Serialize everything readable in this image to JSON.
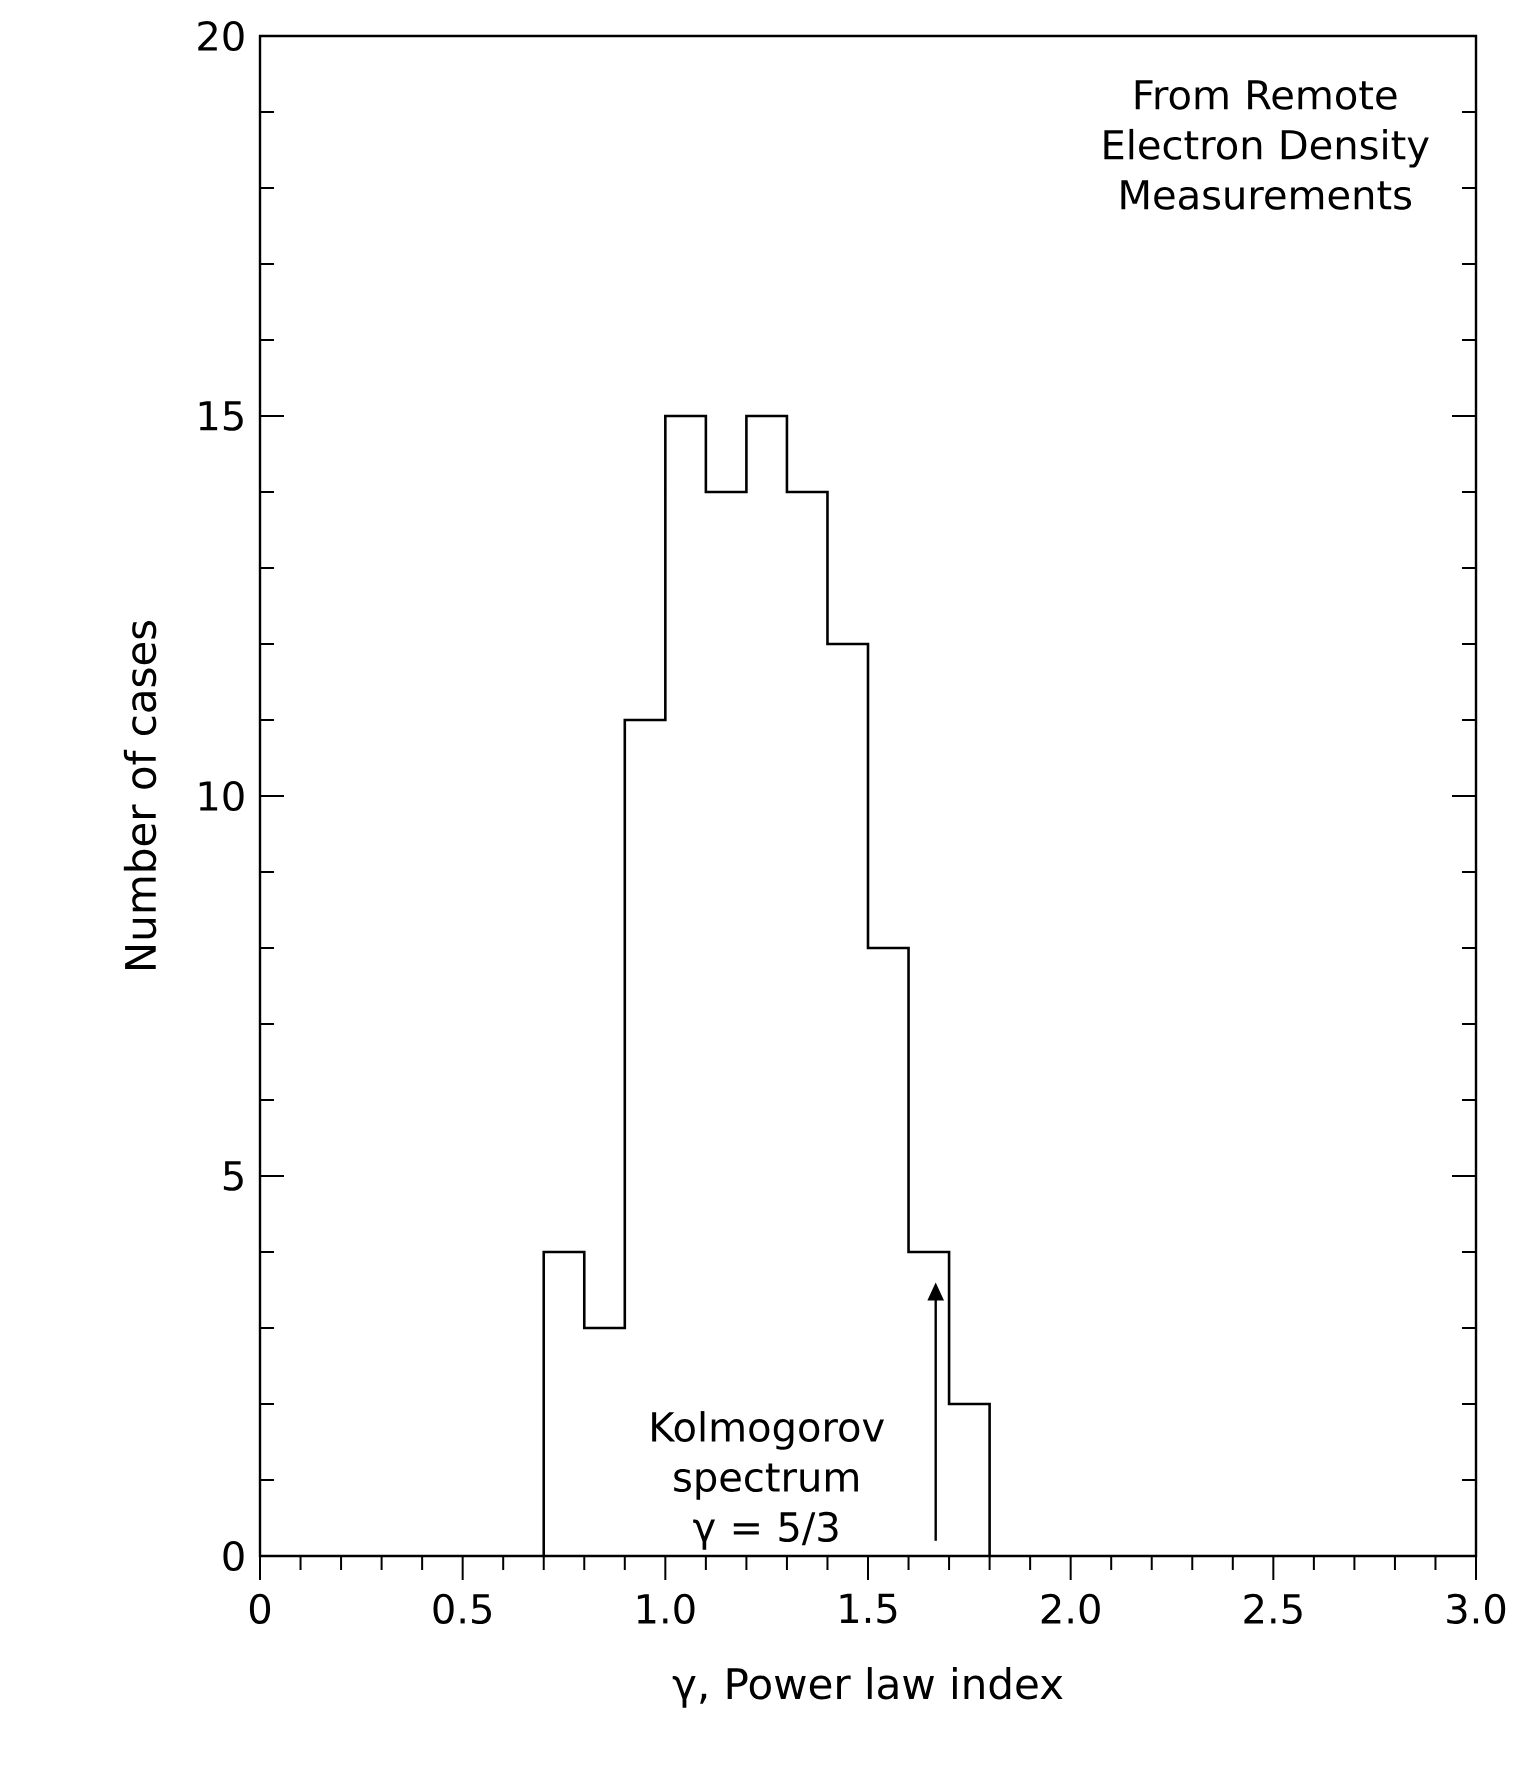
{
  "chart_data": {
    "type": "histogram",
    "bins": [
      0.7,
      0.8,
      0.9,
      1.0,
      1.1,
      1.2,
      1.3,
      1.4,
      1.5,
      1.6,
      1.7,
      1.8
    ],
    "values": [
      4,
      3,
      11,
      15,
      14,
      15,
      14,
      12,
      8,
      4,
      2
    ],
    "color": "#000000",
    "xlabel": "γ, Power law index",
    "ylabel": "Number of cases",
    "xlim": [
      0,
      3
    ],
    "ylim": [
      0,
      20
    ],
    "xticks": [
      {
        "value": 0,
        "label": "0"
      },
      {
        "value": 0.5,
        "label": "0.5"
      },
      {
        "value": 1,
        "label": "1.0"
      },
      {
        "value": 1.5,
        "label": "1.5"
      },
      {
        "value": 2,
        "label": "2.0"
      },
      {
        "value": 2.5,
        "label": "2.5"
      },
      {
        "value": 3,
        "label": "3.0"
      }
    ],
    "yticks": [
      0,
      5,
      10,
      15,
      20
    ],
    "grid": false,
    "annotations": [
      "From Remote Electron Density Measurements",
      "Kolmogorov spectrum γ = 5/3"
    ]
  }
}
